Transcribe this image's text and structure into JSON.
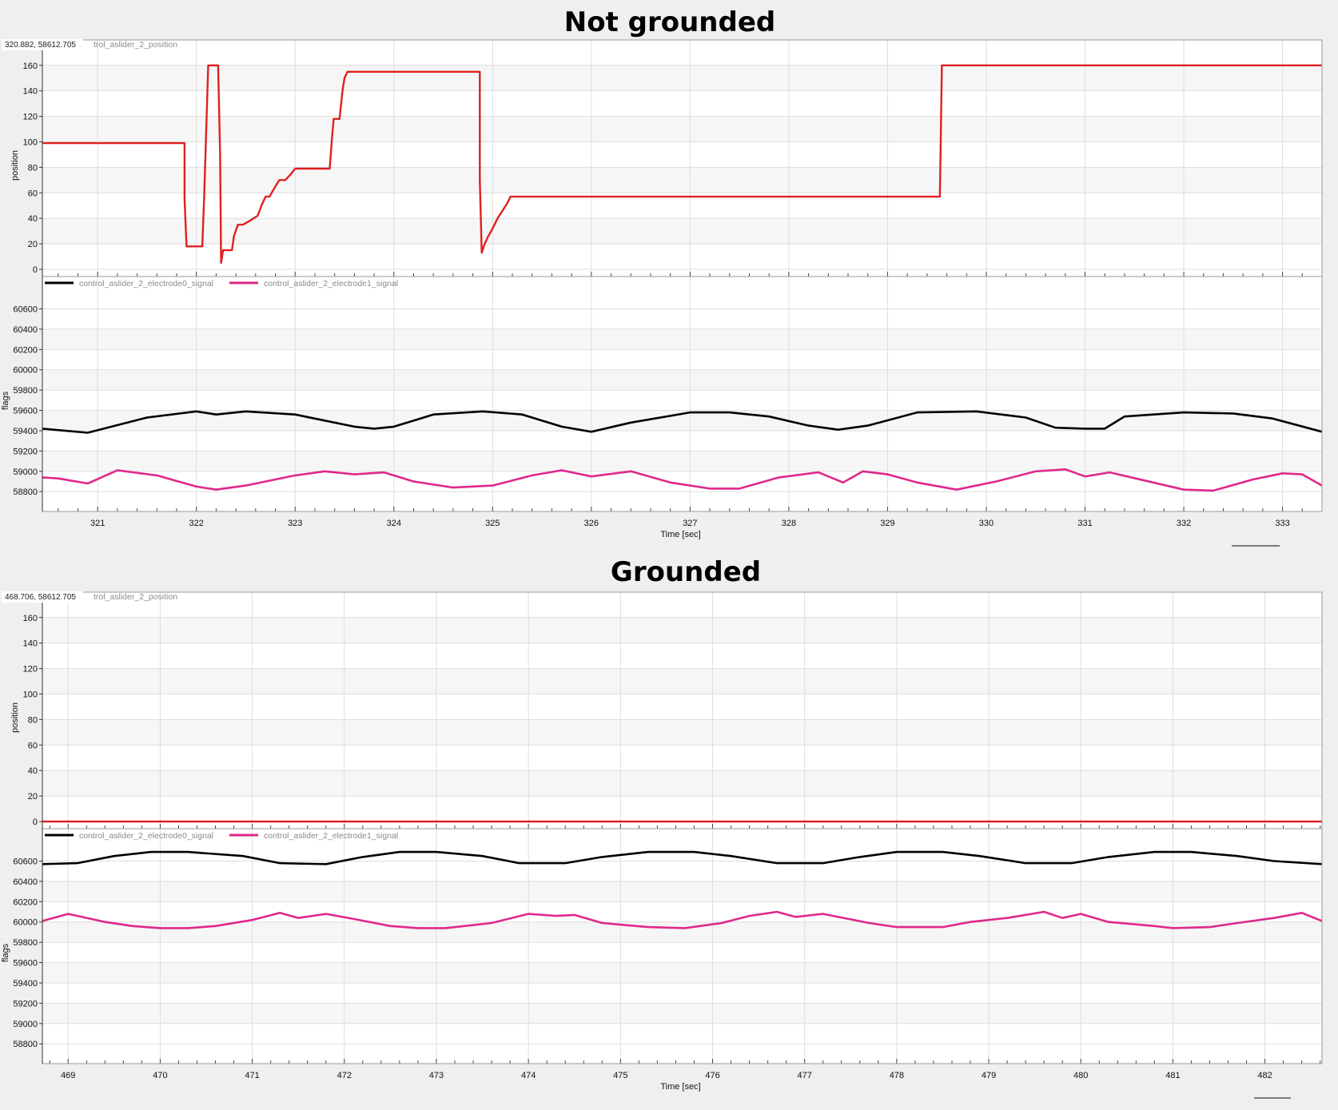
{
  "colors": {
    "position": "#e02020",
    "electrode0": "#000000",
    "electrode1": "#e0288c",
    "grid": "#dedede",
    "band": "#f6f6f6",
    "background": "#efefef"
  },
  "chart_data": [
    {
      "type": "line",
      "title": "Not grounded",
      "coordinate_readout": "320.882, 58612.705",
      "top_legend": "trol_aslider_2_position",
      "xlabel": "Time [sec]",
      "xlim": [
        320.44,
        333.4
      ],
      "xticks": [
        321,
        322,
        323,
        324,
        325,
        326,
        327,
        328,
        329,
        330,
        331,
        332,
        333
      ],
      "top_panel": {
        "ylabel": "position",
        "ylim": [
          0,
          163
        ],
        "yticks": [
          0,
          20,
          40,
          60,
          80,
          100,
          120,
          140,
          160
        ],
        "series": [
          {
            "name": "trol_aslider_2_position",
            "color_key": "position",
            "x": [
              320.44,
              321.88,
              321.88,
              321.9,
              321.94,
              322.06,
              322.08,
              322.12,
              322.22,
              322.24,
              322.25,
              322.27,
              322.36,
              322.38,
              322.42,
              322.47,
              322.54,
              322.62,
              322.66,
              322.7,
              322.74,
              322.8,
              322.84,
              322.9,
              322.96,
              323.0,
              323.04,
              323.1,
              323.35,
              323.37,
              323.39,
              323.45,
              323.48,
              323.5,
              323.53,
              324.87,
              324.87,
              324.89,
              324.92,
              324.95,
              325.0,
              325.05,
              325.1,
              325.15,
              325.18,
              329.53,
              329.55,
              333.4
            ],
            "y": [
              99,
              99,
              55,
              18,
              18,
              18,
              60,
              160,
              160,
              90,
              5,
              15,
              15,
              26,
              35,
              35,
              38,
              42,
              50,
              57,
              57,
              65,
              70,
              70,
              75,
              79,
              79,
              79,
              79,
              100,
              118,
              118,
              140,
              150,
              155,
              155,
              70,
              13,
              20,
              25,
              32,
              40,
              46,
              52,
              57,
              57,
              160,
              160
            ]
          }
        ]
      },
      "bottom_panel": {
        "ylabel": "flags",
        "ylim": [
          58660,
          60730
        ],
        "yticks": [
          58800,
          59000,
          59200,
          59400,
          59600,
          59800,
          60000,
          60200,
          60400,
          60600
        ],
        "series": [
          {
            "name": "control_aslider_2_electrode0_signal",
            "color_key": "electrode0",
            "x": [
              320.44,
              320.9,
              321.5,
              322.0,
              322.2,
              322.5,
              323.0,
              323.6,
              323.8,
              324.0,
              324.4,
              324.9,
              325.3,
              325.7,
              326.0,
              326.4,
              327.0,
              327.4,
              327.8,
              328.2,
              328.5,
              328.8,
              329.3,
              329.9,
              330.4,
              330.7,
              331.0,
              331.2,
              331.4,
              332.0,
              332.5,
              332.9,
              333.4
            ],
            "y": [
              59420,
              59380,
              59530,
              59590,
              59560,
              59590,
              59560,
              59440,
              59420,
              59440,
              59560,
              59590,
              59560,
              59440,
              59390,
              59480,
              59580,
              59580,
              59540,
              59450,
              59410,
              59450,
              59580,
              59590,
              59530,
              59430,
              59420,
              59420,
              59540,
              59580,
              59570,
              59520,
              59390
            ]
          },
          {
            "name": "control_aslider_2_electrode1_signal",
            "color_key": "electrode1",
            "x": [
              320.44,
              320.6,
              320.9,
              321.2,
              321.6,
              322.0,
              322.2,
              322.5,
              323.0,
              323.3,
              323.6,
              323.9,
              324.2,
              324.6,
              325.0,
              325.4,
              325.7,
              326.0,
              326.4,
              326.8,
              327.2,
              327.5,
              327.9,
              328.3,
              328.55,
              328.75,
              329.0,
              329.3,
              329.7,
              330.1,
              330.5,
              330.8,
              331.0,
              331.25,
              331.6,
              332.0,
              332.3,
              332.7,
              333.0,
              333.2,
              333.4
            ],
            "y": [
              58940,
              58930,
              58880,
              59010,
              58960,
              58850,
              58820,
              58860,
              58960,
              59000,
              58970,
              58990,
              58900,
              58840,
              58860,
              58960,
              59010,
              58950,
              59000,
              58890,
              58830,
              58830,
              58940,
              58990,
              58890,
              59000,
              58970,
              58890,
              58820,
              58900,
              59000,
              59020,
              58950,
              58990,
              58910,
              58820,
              58810,
              58920,
              58980,
              58970,
              58860
            ]
          }
        ]
      }
    },
    {
      "type": "line",
      "title": "Grounded",
      "coordinate_readout": "468.706, 58612.705",
      "top_legend": "trol_aslider_2_position",
      "xlabel": "Time [sec]",
      "xlim": [
        468.72,
        482.62
      ],
      "xticks": [
        469,
        470,
        471,
        472,
        473,
        474,
        475,
        476,
        477,
        478,
        479,
        480,
        481,
        482
      ],
      "top_panel": {
        "ylabel": "position",
        "ylim": [
          0,
          163
        ],
        "yticks": [
          0,
          20,
          40,
          60,
          80,
          100,
          120,
          140,
          160
        ],
        "series": [
          {
            "name": "trol_aslider_2_position",
            "color_key": "position",
            "x": [
              468.72,
              482.62
            ],
            "y": [
              0,
              0
            ]
          }
        ]
      },
      "bottom_panel": {
        "ylabel": "flags",
        "ylim": [
          58660,
          60730
        ],
        "yticks": [
          58800,
          59000,
          59200,
          59400,
          59600,
          59800,
          60000,
          60200,
          60400,
          60600
        ],
        "series": [
          {
            "name": "control_aslider_2_electrode0_signal",
            "color_key": "electrode0",
            "x": [
              468.72,
              469.1,
              469.5,
              469.9,
              470.3,
              470.9,
              471.3,
              471.8,
              472.2,
              472.6,
              473.0,
              473.5,
              473.9,
              474.4,
              474.8,
              475.3,
              475.8,
              476.2,
              476.7,
              477.2,
              477.6,
              478.0,
              478.5,
              478.9,
              479.4,
              479.9,
              480.3,
              480.8,
              481.2,
              481.7,
              482.1,
              482.62
            ],
            "y": [
              60570,
              60580,
              60650,
              60690,
              60690,
              60650,
              60580,
              60570,
              60640,
              60690,
              60690,
              60650,
              60580,
              60580,
              60640,
              60690,
              60690,
              60650,
              60580,
              60580,
              60640,
              60690,
              60690,
              60650,
              60580,
              60580,
              60640,
              60690,
              60690,
              60650,
              60600,
              60570
            ]
          },
          {
            "name": "control_aslider_2_electrode1_signal",
            "color_key": "electrode1",
            "x": [
              468.72,
              469.0,
              469.4,
              469.7,
              470.0,
              470.3,
              470.6,
              471.0,
              471.3,
              471.5,
              471.8,
              472.1,
              472.5,
              472.8,
              473.1,
              473.6,
              474.0,
              474.3,
              474.5,
              474.8,
              475.3,
              475.7,
              476.1,
              476.4,
              476.7,
              476.9,
              477.2,
              477.7,
              478.0,
              478.5,
              478.8,
              479.2,
              479.6,
              479.8,
              480.0,
              480.3,
              480.8,
              481.0,
              481.4,
              481.7,
              482.1,
              482.4,
              482.62
            ],
            "y": [
              60010,
              60080,
              60000,
              59960,
              59940,
              59940,
              59960,
              60020,
              60090,
              60040,
              60080,
              60030,
              59960,
              59940,
              59940,
              59990,
              60080,
              60060,
              60070,
              59990,
              59950,
              59940,
              59990,
              60060,
              60100,
              60050,
              60080,
              59990,
              59950,
              59950,
              60000,
              60040,
              60100,
              60040,
              60080,
              60000,
              59960,
              59940,
              59950,
              59990,
              60040,
              60090,
              60010
            ]
          }
        ]
      }
    }
  ]
}
